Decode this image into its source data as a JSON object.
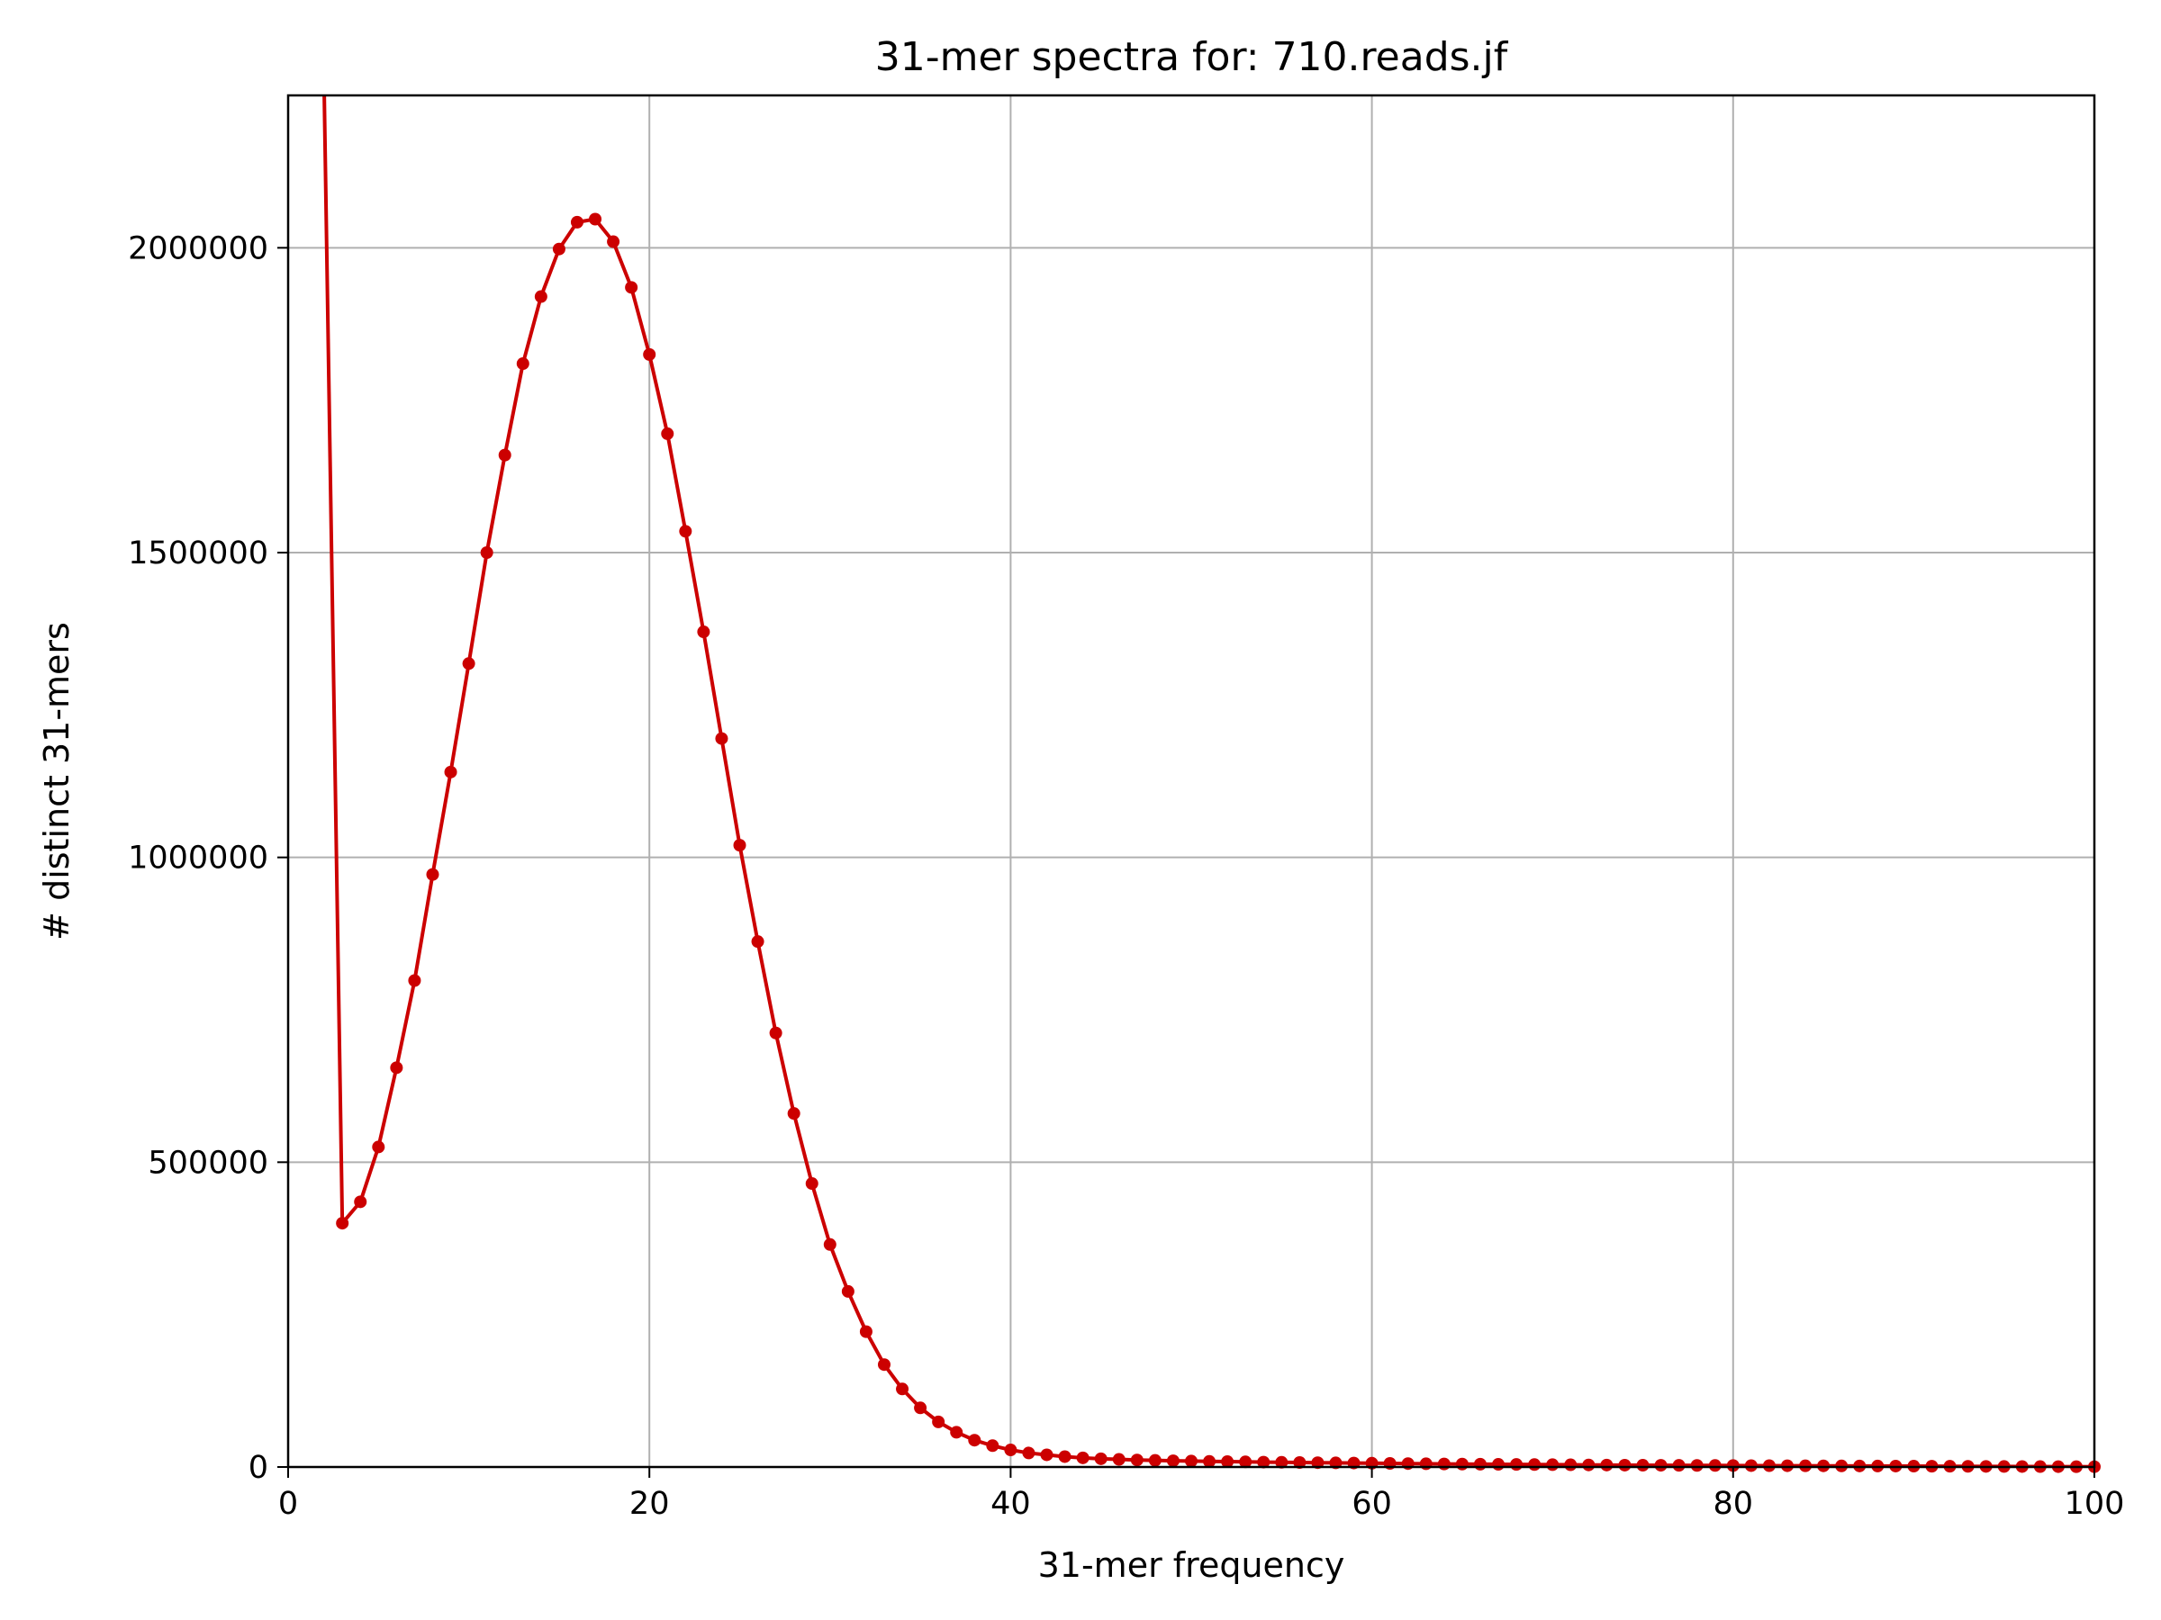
{
  "chart_data": {
    "type": "line",
    "title": "31-mer spectra for: 710.reads.jf",
    "xlabel": "31-mer frequency",
    "ylabel": "# distinct 31-mers",
    "xlim": [
      0,
      100
    ],
    "ylim": [
      0,
      2250000
    ],
    "x_ticks": [
      0,
      20,
      40,
      60,
      80,
      100
    ],
    "x_tick_labels": [
      "0",
      "20",
      "40",
      "60",
      "80",
      "100"
    ],
    "y_ticks": [
      0,
      500000,
      1000000,
      1500000,
      2000000
    ],
    "y_tick_labels": [
      "0",
      "500000",
      "1000000",
      "1500000",
      "2000000"
    ],
    "grid": true,
    "line_color": "#cc0000",
    "series": [
      {
        "x": [
          2,
          3,
          4,
          5,
          6,
          7,
          8,
          9,
          10,
          11,
          12,
          13,
          14,
          15,
          16,
          17,
          18,
          19,
          20,
          21,
          22,
          23,
          24,
          25,
          26,
          27,
          28,
          29,
          30,
          31,
          32,
          33,
          34,
          35,
          36,
          37,
          38,
          39,
          40,
          41,
          42,
          43,
          44,
          45,
          46,
          47,
          48,
          49,
          50,
          51,
          52,
          53,
          54,
          55,
          56,
          57,
          58,
          59,
          60,
          61,
          62,
          63,
          64,
          65,
          66,
          67,
          68,
          69,
          70,
          71,
          72,
          73,
          74,
          75,
          76,
          77,
          78,
          79,
          80,
          81,
          82,
          83,
          84,
          85,
          86,
          87,
          88,
          89,
          90,
          91,
          92,
          93,
          94,
          95,
          96,
          97,
          98,
          99,
          100
        ],
        "values": [
          2250000,
          400000,
          435000,
          525000,
          655000,
          798000,
          972000,
          1140000,
          1318000,
          1500000,
          1660000,
          1810000,
          1920000,
          1998000,
          2042000,
          2047000,
          2010000,
          1935000,
          1825000,
          1695000,
          1535000,
          1370000,
          1195000,
          1020000,
          862000,
          712000,
          580000,
          465000,
          365000,
          288000,
          222000,
          168000,
          128000,
          97000,
          74000,
          57000,
          44000,
          35000,
          28000,
          23000,
          20000,
          17000,
          15000,
          13500,
          12500,
          11500,
          10800,
          10200,
          9700,
          9200,
          8800,
          8400,
          8000,
          7700,
          7400,
          7100,
          6800,
          6500,
          6200,
          5900,
          5600,
          5300,
          5000,
          4800,
          4600,
          4400,
          4200,
          4000,
          3800,
          3600,
          3400,
          3200,
          3000,
          2900,
          2800,
          2700,
          2600,
          2500,
          2400,
          2300,
          2200,
          2100,
          2000,
          1900,
          1800,
          1700,
          1600,
          1500,
          1400,
          1300,
          1200,
          1100,
          1000,
          900,
          800,
          700,
          600,
          500,
          400
        ]
      }
    ]
  }
}
